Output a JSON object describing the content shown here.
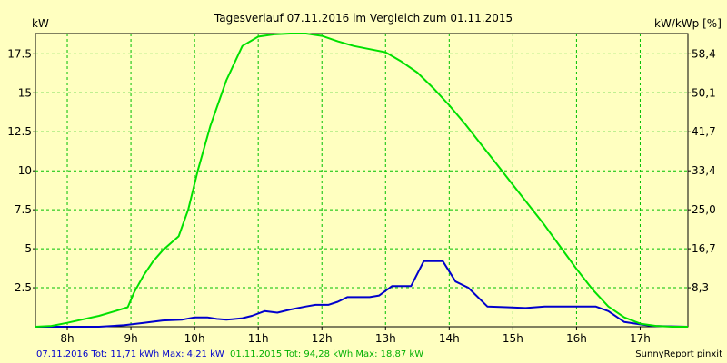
{
  "chart_data": {
    "type": "line",
    "title": "Tagesverlauf 07.11.2016 im Vergleich zum 01.11.2015",
    "ylabel_left": "kW",
    "ylabel_right": "kW/kWp [%]",
    "x_range": [
      7.5,
      17.75
    ],
    "ylim": [
      0,
      18.8
    ],
    "x_ticks": [
      8,
      9,
      10,
      11,
      12,
      13,
      14,
      15,
      16,
      17
    ],
    "x_tick_labels": [
      "8h",
      "9h",
      "10h",
      "11h",
      "12h",
      "13h",
      "14h",
      "15h",
      "16h",
      "17h"
    ],
    "y_ticks": [
      2.5,
      5,
      7.5,
      10,
      12.5,
      15,
      17.5
    ],
    "y_tick_labels": [
      "2.5",
      "5",
      "7.5",
      "10",
      "12.5",
      "15",
      "17.5"
    ],
    "y_right_tick_labels": [
      "8,3",
      "16,7",
      "25,0",
      "33,4",
      "41,7",
      "50,1",
      "58,4"
    ],
    "grid": true,
    "series": [
      {
        "name": "07.11.2016",
        "color": "#0000CC",
        "x": [
          7.5,
          8.5,
          8.9,
          9.2,
          9.5,
          9.8,
          10.0,
          10.2,
          10.35,
          10.5,
          10.75,
          10.9,
          11.1,
          11.3,
          11.5,
          11.75,
          11.9,
          12.1,
          12.25,
          12.4,
          12.5,
          12.75,
          12.9,
          13.1,
          13.4,
          13.6,
          13.9,
          14.1,
          14.3,
          14.6,
          14.9,
          15.2,
          15.5,
          15.8,
          16.1,
          16.3,
          16.5,
          16.75,
          17.0,
          17.2,
          17.75
        ],
        "y": [
          0,
          0,
          0.1,
          0.25,
          0.4,
          0.45,
          0.6,
          0.6,
          0.5,
          0.45,
          0.55,
          0.7,
          1.0,
          0.9,
          1.1,
          1.3,
          1.4,
          1.4,
          1.6,
          1.9,
          1.9,
          1.9,
          2.0,
          2.6,
          2.6,
          4.2,
          4.2,
          2.9,
          2.5,
          1.3,
          1.25,
          1.2,
          1.3,
          1.3,
          1.3,
          1.3,
          1.0,
          0.3,
          0.15,
          0.05,
          0
        ]
      },
      {
        "name": "01.11.2015",
        "color": "#00E000",
        "x": [
          7.5,
          7.75,
          8.0,
          8.5,
          8.75,
          8.95,
          9.05,
          9.2,
          9.35,
          9.5,
          9.75,
          9.9,
          10.05,
          10.25,
          10.5,
          10.75,
          11.0,
          11.25,
          11.5,
          11.75,
          12.0,
          12.25,
          12.5,
          12.75,
          13.0,
          13.25,
          13.5,
          13.75,
          14.0,
          14.25,
          14.5,
          14.75,
          15.0,
          15.25,
          15.5,
          15.75,
          16.0,
          16.25,
          16.5,
          16.75,
          17.0,
          17.25,
          17.5,
          17.75
        ],
        "y": [
          0,
          0.05,
          0.25,
          0.7,
          1.0,
          1.25,
          2.2,
          3.3,
          4.2,
          4.9,
          5.8,
          7.5,
          10.0,
          12.9,
          15.8,
          18.0,
          18.6,
          18.75,
          18.8,
          18.8,
          18.65,
          18.3,
          18.0,
          17.8,
          17.6,
          17.0,
          16.3,
          15.3,
          14.2,
          13.0,
          11.7,
          10.4,
          9.1,
          7.8,
          6.5,
          5.1,
          3.7,
          2.4,
          1.3,
          0.6,
          0.2,
          0.05,
          0,
          0
        ]
      }
    ],
    "footer": {
      "series1_text": "07.11.2016 Tot: 11,71 kWh Max: 4,21 kW",
      "series2_text": "01.11.2015 Tot: 94,28 kWh Max: 18,87 kW",
      "credit": "SunnyReport pinxit",
      "series1_color": "#0000CC",
      "series2_color": "#00B000"
    }
  }
}
